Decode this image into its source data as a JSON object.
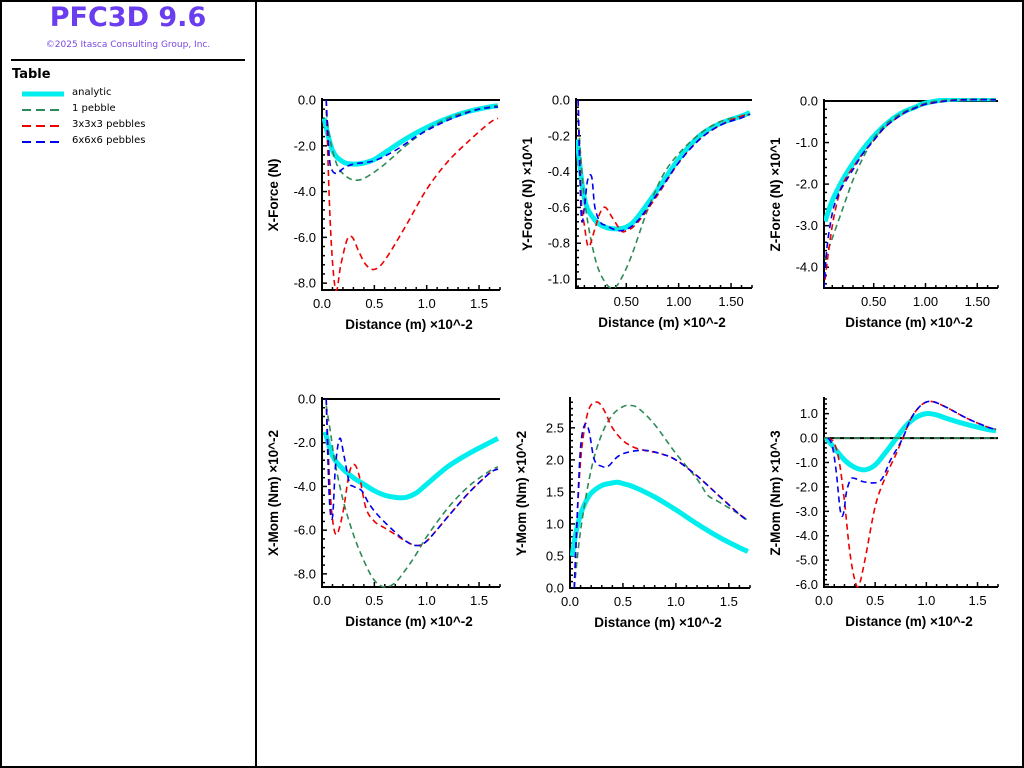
{
  "app": {
    "title": "PFC3D 9.6",
    "copyright": "©2025 Itasca Consulting Group, Inc."
  },
  "legend": {
    "title": "Table",
    "items": [
      {
        "label": "analytic",
        "color": "#00eeee",
        "style": "solid-thick"
      },
      {
        "label": "1 pebble",
        "color": "#2e8b57",
        "style": "dashed"
      },
      {
        "label": "3x3x3 pebbles",
        "color": "#ee0000",
        "style": "dashed"
      },
      {
        "label": "6x6x6 pebbles",
        "color": "#0000ee",
        "style": "dashed"
      }
    ]
  },
  "chart_data": [
    {
      "type": "line",
      "ylabel": "X-Force (N)",
      "xlabel": "Distance (m) ×10^-2",
      "xlim": [
        0,
        1.7
      ],
      "ylim": [
        -8.3,
        0
      ],
      "xticks": [
        "0.0",
        "0.5",
        "1.0",
        "1.5"
      ],
      "xtick_values": [
        0,
        0.5,
        1.0,
        1.5
      ],
      "yticks": [
        "0.0",
        "-2.0",
        "-4.0",
        "-6.0",
        "-8.0"
      ],
      "ytick_values": [
        0,
        -2,
        -4,
        -6,
        -8
      ],
      "series": [
        {
          "name": "analytic",
          "x": [
            0.02,
            0.1,
            0.2,
            0.3,
            0.4,
            0.5,
            0.6,
            0.8,
            1.0,
            1.2,
            1.4,
            1.6,
            1.68
          ],
          "y": [
            -0.8,
            -2.2,
            -2.7,
            -2.8,
            -2.75,
            -2.6,
            -2.3,
            -1.7,
            -1.2,
            -0.8,
            -0.5,
            -0.3,
            -0.25
          ]
        },
        {
          "name": "1 pebble",
          "x": [
            0.04,
            0.08,
            0.15,
            0.25,
            0.35,
            0.45,
            0.6,
            0.8,
            1.0,
            1.2,
            1.4,
            1.6,
            1.68
          ],
          "y": [
            -0.5,
            -1.8,
            -2.9,
            -3.4,
            -3.5,
            -3.3,
            -2.8,
            -2.0,
            -1.3,
            -0.8,
            -0.5,
            -0.3,
            -0.25
          ]
        },
        {
          "name": "3x3x3 pebbles",
          "x": [
            0.04,
            0.08,
            0.13,
            0.18,
            0.24,
            0.29,
            0.35,
            0.42,
            0.5,
            0.6,
            0.8,
            1.0,
            1.2,
            1.4,
            1.6,
            1.68
          ],
          "y": [
            0,
            -5.5,
            -8.3,
            -7.2,
            -6.1,
            -6.0,
            -6.6,
            -7.2,
            -7.4,
            -7.0,
            -5.5,
            -3.9,
            -2.7,
            -1.8,
            -1.0,
            -0.8
          ]
        },
        {
          "name": "6x6x6 pebbles",
          "x": [
            0.04,
            0.07,
            0.1,
            0.15,
            0.2,
            0.3,
            0.5,
            0.7,
            0.9,
            1.1,
            1.3,
            1.5,
            1.68
          ],
          "y": [
            0,
            -2.5,
            -3.1,
            -3.2,
            -3.0,
            -2.8,
            -2.65,
            -2.2,
            -1.6,
            -1.1,
            -0.7,
            -0.4,
            -0.3
          ]
        }
      ]
    },
    {
      "type": "line",
      "ylabel": "Y-Force (N)  ×10^1",
      "xlabel": "Distance (m) ×10^-2",
      "xlim": [
        0.02,
        1.7
      ],
      "ylim": [
        -1.05,
        0
      ],
      "xticks": [
        "0.50",
        "1.00",
        "1.50"
      ],
      "xtick_values": [
        0.5,
        1.0,
        1.5
      ],
      "yticks": [
        "0.0",
        "-0.2",
        "-0.4",
        "-0.6",
        "-0.8",
        "-1.0"
      ],
      "ytick_values": [
        0,
        -0.2,
        -0.4,
        -0.6,
        -0.8,
        -1.0
      ],
      "series": [
        {
          "name": "analytic",
          "x": [
            0.03,
            0.1,
            0.2,
            0.3,
            0.4,
            0.5,
            0.6,
            0.8,
            1.0,
            1.2,
            1.4,
            1.6,
            1.68
          ],
          "y": [
            -0.22,
            -0.55,
            -0.67,
            -0.71,
            -0.72,
            -0.71,
            -0.66,
            -0.5,
            -0.33,
            -0.2,
            -0.13,
            -0.09,
            -0.07
          ]
        },
        {
          "name": "1 pebble",
          "x": [
            0.04,
            0.1,
            0.2,
            0.3,
            0.38,
            0.45,
            0.55,
            0.7,
            0.85,
            1.0,
            1.2,
            1.4,
            1.6,
            1.68
          ],
          "y": [
            -0.1,
            -0.55,
            -0.88,
            -1.02,
            -1.05,
            -1.0,
            -0.87,
            -0.62,
            -0.42,
            -0.3,
            -0.19,
            -0.12,
            -0.09,
            -0.08
          ]
        },
        {
          "name": "3x3x3 pebbles",
          "x": [
            0.04,
            0.07,
            0.1,
            0.14,
            0.2,
            0.25,
            0.3,
            0.37,
            0.45,
            0.5,
            0.6,
            0.8,
            1.0,
            1.2,
            1.4,
            1.6,
            1.68
          ],
          "y": [
            0,
            -0.55,
            -0.7,
            -0.82,
            -0.72,
            -0.63,
            -0.6,
            -0.66,
            -0.73,
            -0.73,
            -0.69,
            -0.53,
            -0.35,
            -0.22,
            -0.14,
            -0.09,
            -0.08
          ]
        },
        {
          "name": "6x6x6 pebbles",
          "x": [
            0.04,
            0.07,
            0.1,
            0.13,
            0.17,
            0.2,
            0.25,
            0.3,
            0.45,
            0.6,
            0.8,
            1.0,
            1.2,
            1.4,
            1.6,
            1.68
          ],
          "y": [
            0,
            -0.64,
            -0.6,
            -0.45,
            -0.43,
            -0.6,
            -0.68,
            -0.7,
            -0.73,
            -0.68,
            -0.52,
            -0.35,
            -0.22,
            -0.14,
            -0.1,
            -0.08
          ]
        }
      ]
    },
    {
      "type": "line",
      "ylabel": "Z-Force (N)  ×10^1",
      "xlabel": "Distance (m) ×10^-2",
      "xlim": [
        0.02,
        1.7
      ],
      "ylim": [
        -4.5,
        0
      ],
      "xticks": [
        "0.50",
        "1.00",
        "1.50"
      ],
      "xtick_values": [
        0.5,
        1.0,
        1.5
      ],
      "yticks": [
        "0.0",
        "-1.0",
        "-2.0",
        "-3.0",
        "-4.0"
      ],
      "ytick_values": [
        0,
        -1,
        -2,
        -3,
        -4
      ],
      "series": [
        {
          "name": "analytic",
          "x": [
            0.03,
            0.1,
            0.2,
            0.3,
            0.4,
            0.5,
            0.6,
            0.7,
            0.8,
            0.9,
            1.0,
            1.2,
            1.4,
            1.68
          ],
          "y": [
            -2.9,
            -2.4,
            -1.9,
            -1.5,
            -1.15,
            -0.85,
            -0.6,
            -0.4,
            -0.25,
            -0.15,
            -0.05,
            0.03,
            0.05,
            0.05
          ]
        },
        {
          "name": "1 pebble",
          "x": [
            0.03,
            0.1,
            0.2,
            0.3,
            0.4,
            0.5,
            0.6,
            0.7,
            0.8,
            0.9,
            1.0,
            1.2,
            1.4,
            1.68
          ],
          "y": [
            -3.8,
            -3.3,
            -2.6,
            -1.9,
            -1.35,
            -0.9,
            -0.6,
            -0.4,
            -0.25,
            -0.15,
            -0.05,
            0.02,
            0.04,
            0.04
          ]
        },
        {
          "name": "3x3x3 pebbles",
          "x": [
            0.03,
            0.06,
            0.1,
            0.15,
            0.2,
            0.3,
            0.4,
            0.5,
            0.6,
            0.7,
            0.8,
            0.9,
            1.0,
            1.2,
            1.4,
            1.68
          ],
          "y": [
            -4.3,
            -3.7,
            -3.0,
            -2.4,
            -2.0,
            -1.6,
            -1.25,
            -0.95,
            -0.65,
            -0.45,
            -0.28,
            -0.17,
            -0.08,
            0.0,
            0.03,
            0.03
          ]
        },
        {
          "name": "6x6x6 pebbles",
          "x": [
            0.02,
            0.05,
            0.1,
            0.15,
            0.2,
            0.3,
            0.4,
            0.5,
            0.6,
            0.7,
            0.8,
            0.9,
            1.0,
            1.2,
            1.4,
            1.68
          ],
          "y": [
            -4.5,
            -3.5,
            -2.7,
            -2.3,
            -2.05,
            -1.65,
            -1.25,
            -0.95,
            -0.65,
            -0.45,
            -0.28,
            -0.17,
            -0.08,
            0.0,
            0.03,
            0.03
          ]
        }
      ]
    },
    {
      "type": "line",
      "ylabel": "X-Mom (Nm)  ×10^-2",
      "xlabel": "Distance (m) ×10^-2",
      "xlim": [
        0,
        1.7
      ],
      "ylim": [
        -8.6,
        0
      ],
      "xticks": [
        "0.0",
        "0.5",
        "1.0",
        "1.5"
      ],
      "xtick_values": [
        0,
        0.5,
        1.0,
        1.5
      ],
      "yticks": [
        "0.0",
        "-2.0",
        "-4.0",
        "-6.0",
        "-8.0"
      ],
      "ytick_values": [
        0,
        -2,
        -4,
        -6,
        -8
      ],
      "series": [
        {
          "name": "analytic",
          "x": [
            0.03,
            0.1,
            0.2,
            0.3,
            0.4,
            0.5,
            0.6,
            0.7,
            0.8,
            0.9,
            1.0,
            1.2,
            1.4,
            1.6,
            1.68
          ],
          "y": [
            -1.5,
            -2.6,
            -3.2,
            -3.6,
            -3.9,
            -4.2,
            -4.4,
            -4.5,
            -4.5,
            -4.3,
            -3.9,
            -3.1,
            -2.5,
            -2.0,
            -1.8
          ]
        },
        {
          "name": "1 pebble",
          "x": [
            0.04,
            0.08,
            0.12,
            0.2,
            0.3,
            0.4,
            0.5,
            0.6,
            0.7,
            0.8,
            0.9,
            1.0,
            1.2,
            1.4,
            1.6,
            1.68
          ],
          "y": [
            -0.3,
            -1.5,
            -2.8,
            -4.6,
            -6.2,
            -7.4,
            -8.3,
            -8.6,
            -8.4,
            -7.8,
            -7.1,
            -6.3,
            -5.0,
            -4.0,
            -3.3,
            -3.1
          ]
        },
        {
          "name": "3x3x3 pebbles",
          "x": [
            0.04,
            0.07,
            0.1,
            0.14,
            0.2,
            0.26,
            0.31,
            0.36,
            0.42,
            0.5,
            0.6,
            0.7,
            0.8,
            0.9,
            1.0,
            1.2,
            1.4,
            1.6,
            1.68
          ],
          "y": [
            0,
            -3.5,
            -5.5,
            -6.2,
            -5.2,
            -3.4,
            -3.0,
            -3.6,
            -5.0,
            -5.6,
            -5.9,
            -6.2,
            -6.5,
            -6.7,
            -6.5,
            -5.4,
            -4.3,
            -3.4,
            -3.2
          ]
        },
        {
          "name": "6x6x6 pebbles",
          "x": [
            0.04,
            0.07,
            0.1,
            0.13,
            0.17,
            0.21,
            0.26,
            0.3,
            0.38,
            0.45,
            0.55,
            0.7,
            0.8,
            0.9,
            1.0,
            1.2,
            1.4,
            1.6,
            1.68
          ],
          "y": [
            0,
            -4.5,
            -5.4,
            -3.0,
            -1.8,
            -2.6,
            -3.8,
            -4.0,
            -4.2,
            -4.8,
            -5.4,
            -6.1,
            -6.5,
            -6.7,
            -6.5,
            -5.4,
            -4.3,
            -3.4,
            -3.2
          ]
        }
      ]
    },
    {
      "type": "line",
      "ylabel": "Y-Mom (Nm)  ×10^-2",
      "xlabel": "Distance (m) ×10^-2",
      "xlim": [
        0,
        1.7
      ],
      "ylim": [
        0,
        2.95
      ],
      "xticks": [
        "0.0",
        "0.5",
        "1.0",
        "1.5"
      ],
      "xtick_values": [
        0,
        0.5,
        1.0,
        1.5
      ],
      "yticks": [
        "0.0",
        "0.5",
        "1.0",
        "1.5",
        "2.0",
        "2.5"
      ],
      "ytick_values": [
        0,
        0.5,
        1.0,
        1.5,
        2.0,
        2.5
      ],
      "series": [
        {
          "name": "analytic",
          "x": [
            0.02,
            0.06,
            0.1,
            0.15,
            0.2,
            0.3,
            0.4,
            0.45,
            0.5,
            0.6,
            0.8,
            1.0,
            1.2,
            1.4,
            1.6,
            1.68
          ],
          "y": [
            0.5,
            0.9,
            1.15,
            1.35,
            1.48,
            1.6,
            1.64,
            1.65,
            1.63,
            1.58,
            1.42,
            1.22,
            1.0,
            0.8,
            0.63,
            0.57
          ]
        },
        {
          "name": "1 pebble",
          "x": [
            0.04,
            0.1,
            0.2,
            0.3,
            0.4,
            0.5,
            0.57,
            0.65,
            0.8,
            1.0,
            1.2,
            1.3,
            1.4,
            1.6,
            1.68
          ],
          "y": [
            0,
            0.9,
            1.85,
            2.4,
            2.7,
            2.83,
            2.85,
            2.8,
            2.55,
            2.1,
            1.7,
            1.45,
            1.35,
            1.15,
            1.05
          ]
        },
        {
          "name": "3x3x3 pebbles",
          "x": [
            0.04,
            0.08,
            0.12,
            0.18,
            0.26,
            0.33,
            0.4,
            0.5,
            0.6,
            0.7,
            0.85,
            1.0,
            1.2,
            1.4,
            1.6,
            1.68
          ],
          "y": [
            0,
            1.5,
            2.3,
            2.8,
            2.9,
            2.75,
            2.5,
            2.3,
            2.2,
            2.15,
            2.1,
            2.0,
            1.75,
            1.45,
            1.15,
            1.05
          ]
        },
        {
          "name": "6x6x6 pebbles",
          "x": [
            0.04,
            0.07,
            0.1,
            0.14,
            0.18,
            0.23,
            0.3,
            0.36,
            0.45,
            0.55,
            0.7,
            0.85,
            1.0,
            1.2,
            1.4,
            1.6,
            1.68
          ],
          "y": [
            0,
            1.2,
            2.2,
            2.55,
            2.45,
            2.0,
            1.9,
            1.9,
            2.05,
            2.12,
            2.15,
            2.1,
            2.0,
            1.75,
            1.45,
            1.15,
            1.05
          ]
        }
      ]
    },
    {
      "type": "line",
      "ylabel": "Z-Mom (Nm)  ×10^-3",
      "xlabel": "Distance (m) ×10^-2",
      "xlim": [
        0,
        1.7
      ],
      "ylim": [
        -6.1,
        1.6
      ],
      "xticks": [
        "0.0",
        "0.5",
        "1.0",
        "1.5"
      ],
      "xtick_values": [
        0,
        0.5,
        1.0,
        1.5
      ],
      "yticks": [
        "1.0",
        "0.0",
        "-1.0",
        "-2.0",
        "-3.0",
        "-4.0",
        "-5.0",
        "-6.0"
      ],
      "ytick_values": [
        1,
        0,
        -1,
        -2,
        -3,
        -4,
        -5,
        -6
      ],
      "series": [
        {
          "name": "analytic",
          "x": [
            0.02,
            0.1,
            0.2,
            0.3,
            0.4,
            0.5,
            0.6,
            0.7,
            0.8,
            0.9,
            1.0,
            1.1,
            1.2,
            1.4,
            1.6,
            1.68
          ],
          "y": [
            0.0,
            -0.4,
            -0.9,
            -1.2,
            -1.3,
            -1.1,
            -0.6,
            -0.05,
            0.5,
            0.85,
            1.0,
            0.95,
            0.8,
            0.55,
            0.35,
            0.3
          ]
        },
        {
          "name": "1 pebble",
          "x": [
            0.0,
            1.68
          ],
          "y": [
            0.0,
            0.0
          ]
        },
        {
          "name": "3x3x3 pebbles",
          "x": [
            0.04,
            0.1,
            0.15,
            0.2,
            0.25,
            0.3,
            0.34,
            0.4,
            0.5,
            0.6,
            0.7,
            0.77,
            0.85,
            0.95,
            1.05,
            1.2,
            1.4,
            1.6,
            1.68
          ],
          "y": [
            0,
            -0.2,
            -1.0,
            -2.6,
            -4.6,
            -5.8,
            -6.05,
            -5.0,
            -2.8,
            -1.6,
            -0.7,
            0.0,
            0.8,
            1.35,
            1.5,
            1.25,
            0.8,
            0.45,
            0.35
          ]
        },
        {
          "name": "6x6x6 pebbles",
          "x": [
            0.04,
            0.08,
            0.12,
            0.16,
            0.19,
            0.22,
            0.26,
            0.3,
            0.4,
            0.55,
            0.65,
            0.77,
            0.85,
            0.95,
            1.05,
            1.2,
            1.4,
            1.6,
            1.68
          ],
          "y": [
            0,
            -0.3,
            -1.4,
            -3.0,
            -3.1,
            -2.2,
            -1.7,
            -1.65,
            -1.8,
            -1.75,
            -0.9,
            0.0,
            0.8,
            1.35,
            1.5,
            1.25,
            0.8,
            0.45,
            0.35
          ]
        }
      ]
    }
  ]
}
